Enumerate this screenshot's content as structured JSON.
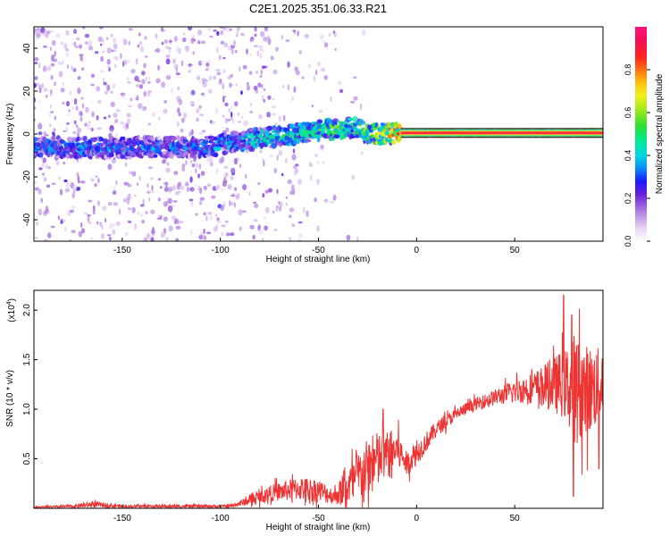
{
  "title": "C2E1.2025.351.06.33.R21",
  "chart_data": [
    {
      "type": "heatmap",
      "xlabel": "Height of straight line (km)",
      "ylabel": "Frequency (Hz)",
      "xlim": [
        -195,
        95
      ],
      "ylim": [
        -50,
        50
      ],
      "xticks": [
        -150,
        -100,
        -50,
        0,
        50
      ],
      "yticks": [
        -40,
        -20,
        0,
        20,
        40
      ],
      "grid": false,
      "colorbar": {
        "label": "Normalized spectral amplitude",
        "range": [
          0,
          1
        ],
        "ticks": [
          0.0,
          0.2,
          0.4,
          0.6,
          0.8
        ]
      },
      "ridge": {
        "x": [
          -195,
          -160,
          -130,
          -110,
          -100,
          -80,
          -60,
          -45,
          -30,
          -25,
          -10,
          0,
          20,
          50,
          80,
          95
        ],
        "frequency": [
          -6,
          -6.5,
          -6,
          -6.5,
          -5,
          -2,
          0,
          2,
          3,
          0,
          0.5,
          0.5,
          0.5,
          0.5,
          0.5,
          0.5
        ],
        "amplitude": [
          0.35,
          0.35,
          0.32,
          0.32,
          0.38,
          0.42,
          0.45,
          0.5,
          0.5,
          0.55,
          0.8,
          0.85,
          0.85,
          0.85,
          0.85,
          0.85
        ]
      }
    },
    {
      "type": "line",
      "xlabel": "Height of straight line (km)",
      "ylabel": "SNR (10 * v/v)",
      "y_multiplier": "(x10",
      "y_multiplier_exponent": "4",
      "y_multiplier_close": ")",
      "xlim": [
        -195,
        95
      ],
      "ylim": [
        0,
        2.2
      ],
      "xticks": [
        -150,
        -100,
        -50,
        0,
        50
      ],
      "yticks": [
        0.5,
        1.0,
        1.5,
        2.0
      ],
      "ytick_labels": [
        "0.5",
        "1.0",
        "1.5",
        "2.0"
      ],
      "color": "#ee3333",
      "envelope": {
        "x": [
          -195,
          -175,
          -165,
          -150,
          -120,
          -95,
          -85,
          -75,
          -60,
          -50,
          -42,
          -35,
          -28,
          -22,
          -18,
          -10,
          -5,
          0,
          10,
          20,
          30,
          40,
          50,
          60,
          70,
          76,
          80,
          86,
          92,
          95
        ],
        "base": [
          0.01,
          0.02,
          0.04,
          0.02,
          0.02,
          0.02,
          0.08,
          0.15,
          0.2,
          0.18,
          0.12,
          0.22,
          0.35,
          0.45,
          0.5,
          0.6,
          0.45,
          0.55,
          0.8,
          0.95,
          1.05,
          1.12,
          1.18,
          1.22,
          1.25,
          1.25,
          1.22,
          1.18,
          1.22,
          1.3
        ],
        "noise": [
          0.01,
          0.02,
          0.04,
          0.02,
          0.02,
          0.02,
          0.06,
          0.1,
          0.15,
          0.15,
          0.1,
          0.25,
          0.35,
          0.4,
          0.35,
          0.25,
          0.15,
          0.15,
          0.1,
          0.08,
          0.08,
          0.1,
          0.15,
          0.2,
          0.35,
          0.45,
          0.7,
          0.6,
          0.5,
          0.45
        ]
      },
      "peaks": [
        {
          "x": -17,
          "y": 1.0
        },
        {
          "x": 73,
          "y": 1.55
        },
        {
          "x": 75,
          "y": 2.15
        },
        {
          "x": 79,
          "y": 1.95
        },
        {
          "x": 93,
          "y": 1.85
        }
      ],
      "dips": [
        {
          "x": 80,
          "y": 0.12
        },
        {
          "x": 93,
          "y": 0.4
        }
      ]
    }
  ]
}
